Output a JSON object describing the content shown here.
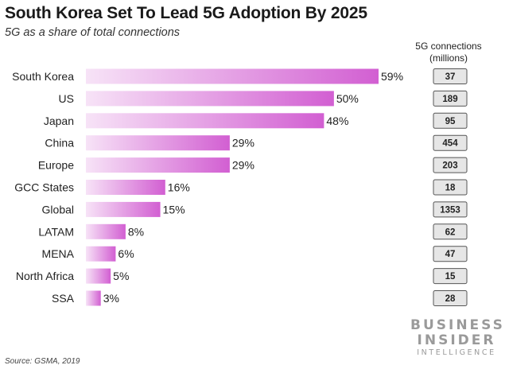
{
  "header": {
    "title": "South Korea Set To Lead 5G Adoption By 2025",
    "subtitle": "5G as a share of total connections",
    "side_header_line1": "5G connections",
    "side_header_line2": "(millions)"
  },
  "footer": {
    "source": "Source: GSMA, 2019"
  },
  "logo": {
    "line1": "BUSINESS",
    "line2": "INSIDER",
    "line3": "INTELLIGENCE"
  },
  "colors": {
    "bar_start": "#f7e3f7",
    "bar_end": "#d25fd2",
    "box_border": "#555555",
    "box_fill": "#e6e6e6"
  },
  "chart_data": {
    "type": "bar",
    "orientation": "horizontal",
    "title": "South Korea Set To Lead 5G Adoption By 2025",
    "subtitle": "5G as a share of total connections",
    "categories": [
      "South Korea",
      "US",
      "Japan",
      "China",
      "Europe",
      "GCC States",
      "Global",
      "LATAM",
      "MENA",
      "North Africa",
      "SSA"
    ],
    "values": [
      59,
      50,
      48,
      29,
      29,
      16,
      15,
      8,
      6,
      5,
      3
    ],
    "value_labels": [
      "59%",
      "50%",
      "48%",
      "29%",
      "29%",
      "16%",
      "15%",
      "8%",
      "6%",
      "5%",
      "3%"
    ],
    "secondary_header": "5G connections (millions)",
    "secondary_values": [
      "37",
      "189",
      "95",
      "454",
      "203",
      "18",
      "1353",
      "62",
      "47",
      "15",
      "28"
    ],
    "xlim": [
      0,
      59
    ],
    "grid": false
  }
}
